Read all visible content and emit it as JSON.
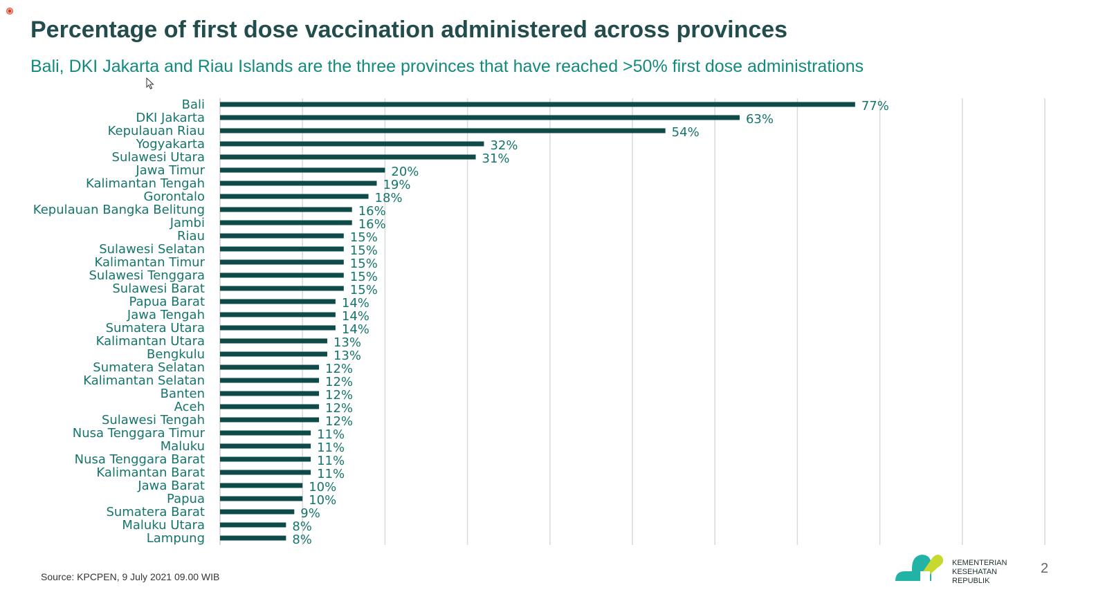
{
  "title": "Percentage of first dose vaccination administered across provinces",
  "subtitle": "Bali, DKI Jakarta and Riau Islands are the three provinces that have reached >50% first dose administrations",
  "source": "Source: KPCPEN, 9 July 2021 09.00 WIB",
  "footer": {
    "logo_line1": "KEMENTERIAN",
    "logo_line2": "KESEHATAN",
    "logo_line3": "REPUBLIK",
    "page_number": "2"
  },
  "colors": {
    "bar": "#0e4a47",
    "label": "#15756c",
    "title": "#234c4c",
    "subtitle": "#138a7e",
    "grid": "#d9d9d9",
    "logo_teal": "#22b3a6",
    "logo_lime": "#c7d92e"
  },
  "chart_data": {
    "type": "bar",
    "orientation": "horizontal",
    "categories": [
      "Bali",
      "DKI Jakarta",
      "Kepulauan Riau",
      "Yogyakarta",
      "Sulawesi Utara",
      "Jawa Timur",
      "Kalimantan Tengah",
      "Gorontalo",
      "Kepulauan Bangka Belitung",
      "Jambi",
      "Riau",
      "Sulawesi Selatan",
      "Kalimantan Timur",
      "Sulawesi Tenggara",
      "Sulawesi Barat",
      "Papua Barat",
      "Jawa Tengah",
      "Sumatera Utara",
      "Kalimantan Utara",
      "Bengkulu",
      "Sumatera Selatan",
      "Kalimantan Selatan",
      "Banten",
      "Aceh",
      "Sulawesi Tengah",
      "Nusa Tenggara Timur",
      "Maluku",
      "Nusa Tenggara Barat",
      "Kalimantan Barat",
      "Jawa Barat",
      "Papua",
      "Sumatera Barat",
      "Maluku Utara",
      "Lampung"
    ],
    "values": [
      77,
      63,
      54,
      32,
      31,
      20,
      19,
      18,
      16,
      16,
      15,
      15,
      15,
      15,
      15,
      14,
      14,
      14,
      13,
      13,
      12,
      12,
      12,
      12,
      12,
      11,
      11,
      11,
      11,
      10,
      10,
      9,
      8,
      8
    ],
    "value_labels": [
      "77%",
      "63%",
      "54%",
      "32%",
      "31%",
      "20%",
      "19%",
      "18%",
      "16%",
      "16%",
      "15%",
      "15%",
      "15%",
      "15%",
      "15%",
      "14%",
      "14%",
      "14%",
      "13%",
      "13%",
      "12%",
      "12%",
      "12%",
      "12%",
      "12%",
      "11%",
      "11%",
      "11%",
      "11%",
      "10%",
      "10%",
      "9%",
      "8%",
      "8%"
    ],
    "xlim": [
      0,
      100
    ],
    "grid": true,
    "legend": "none"
  }
}
